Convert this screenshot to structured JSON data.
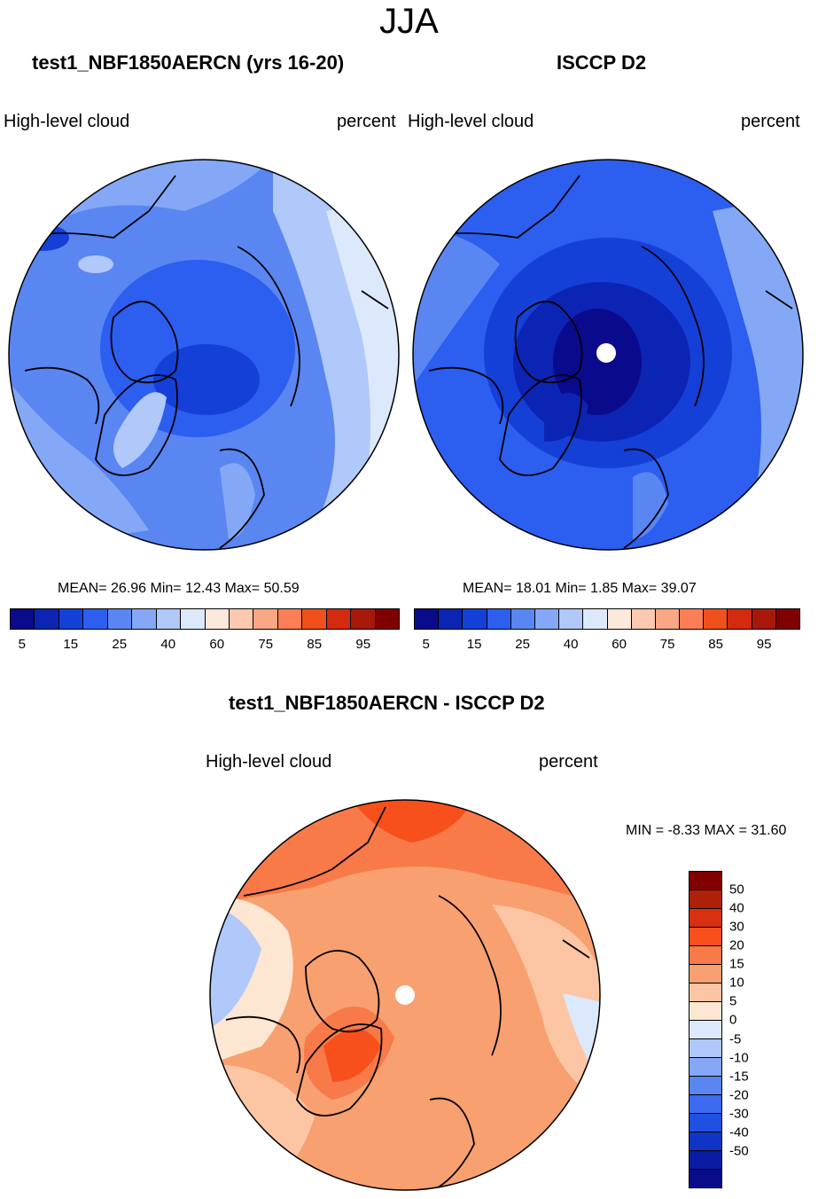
{
  "season": "JJA",
  "panels": [
    {
      "title": "test1_NBF1850AERCN (yrs 16-20)",
      "variable": "High-level cloud",
      "units": "percent",
      "stats": "MEAN=  26.96  Min=  12.43  Max=  50.59"
    },
    {
      "title": "ISCCP D2",
      "variable": "High-level cloud",
      "units": "percent",
      "stats": "MEAN=  18.01  Min=   1.85  Max=  39.07"
    }
  ],
  "diff": {
    "title": "test1_NBF1850AERCN - ISCCP D2",
    "variable": "High-level cloud",
    "units": "percent",
    "minmax": "MIN =  -8.33 MAX =  31.60"
  },
  "colorbar": {
    "colors": [
      "#0a0a8c",
      "#0c24b4",
      "#1440d8",
      "#2c5ef0",
      "#5a86f2",
      "#84a8f6",
      "#b0c8fa",
      "#dce8fc",
      "#fde8dc",
      "#fcc8b0",
      "#fba684",
      "#fb7e54",
      "#f0501c",
      "#d42a10",
      "#a81808",
      "#800000"
    ],
    "tick_labels": [
      "5",
      "15",
      "25",
      "40",
      "60",
      "75",
      "85",
      "95"
    ]
  },
  "diff_colorbar": {
    "colors": [
      "#800000",
      "#b02008",
      "#d83010",
      "#f8501c",
      "#f87a48",
      "#f8a070",
      "#fcc6a4",
      "#fde6d2",
      "#dce8fc",
      "#b0c8fa",
      "#84a8f6",
      "#5a86f2",
      "#3c6af0",
      "#2050e0",
      "#1034c8",
      "#0a1ca4",
      "#080c88"
    ],
    "tick_labels": [
      "50",
      "40",
      "30",
      "20",
      "15",
      "10",
      "5",
      "0",
      "-5",
      "-10",
      "-15",
      "-20",
      "-30",
      "-40",
      "-50"
    ]
  }
}
